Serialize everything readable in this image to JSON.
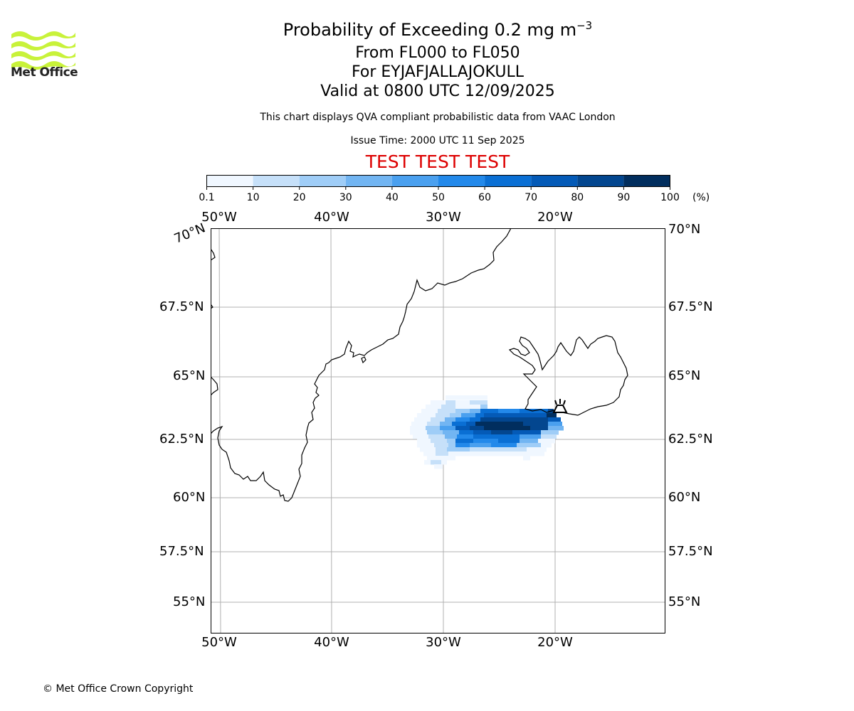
{
  "logo": {
    "text": "Met Office",
    "color": "#c8f23a"
  },
  "header": {
    "title_main": "Probability of Exceeding 0.2 mg m",
    "title_sup": "−3",
    "range": "From FL000 to FL050",
    "volcano": "For EYJAFJALLAJOKULL",
    "valid": "Valid at 0800 UTC 12/09/2025",
    "description": "This chart displays QVA compliant probabilistic data from VAAC London",
    "issue": "Issue Time: 2000 UTC 11 Sep 2025",
    "test_banner": "TEST TEST TEST"
  },
  "colorbar": {
    "ticks": [
      "0.1",
      "10",
      "20",
      "30",
      "40",
      "50",
      "60",
      "70",
      "80",
      "90",
      "100"
    ],
    "unit": "(%)",
    "colors": [
      "#f0f7ff",
      "#c6e0f9",
      "#9fcdf7",
      "#72b5f2",
      "#4aa0ef",
      "#2389ea",
      "#0a6fd4",
      "#045ab7",
      "#03468f",
      "#012e5e"
    ]
  },
  "map": {
    "lon_labels_top": [
      "50°W",
      "40°W",
      "30°W",
      "20°W"
    ],
    "lon_labels_bottom": [
      "50°W",
      "40°W",
      "30°W",
      "20°W"
    ],
    "lat_labels_left": [
      "70°N",
      "67.5°N",
      "65°N",
      "62.5°N",
      "60°N",
      "57.5°N",
      "55°N"
    ],
    "lat_labels_right": [
      "70°N",
      "67.5°N",
      "65°N",
      "62.5°N",
      "60°N",
      "57.5°N",
      "55°N"
    ],
    "volcano_marker": "volcano-icon",
    "gridline_color": "#b0b0b0"
  },
  "footer": {
    "copyright": "© Met Office Crown Copyright"
  }
}
